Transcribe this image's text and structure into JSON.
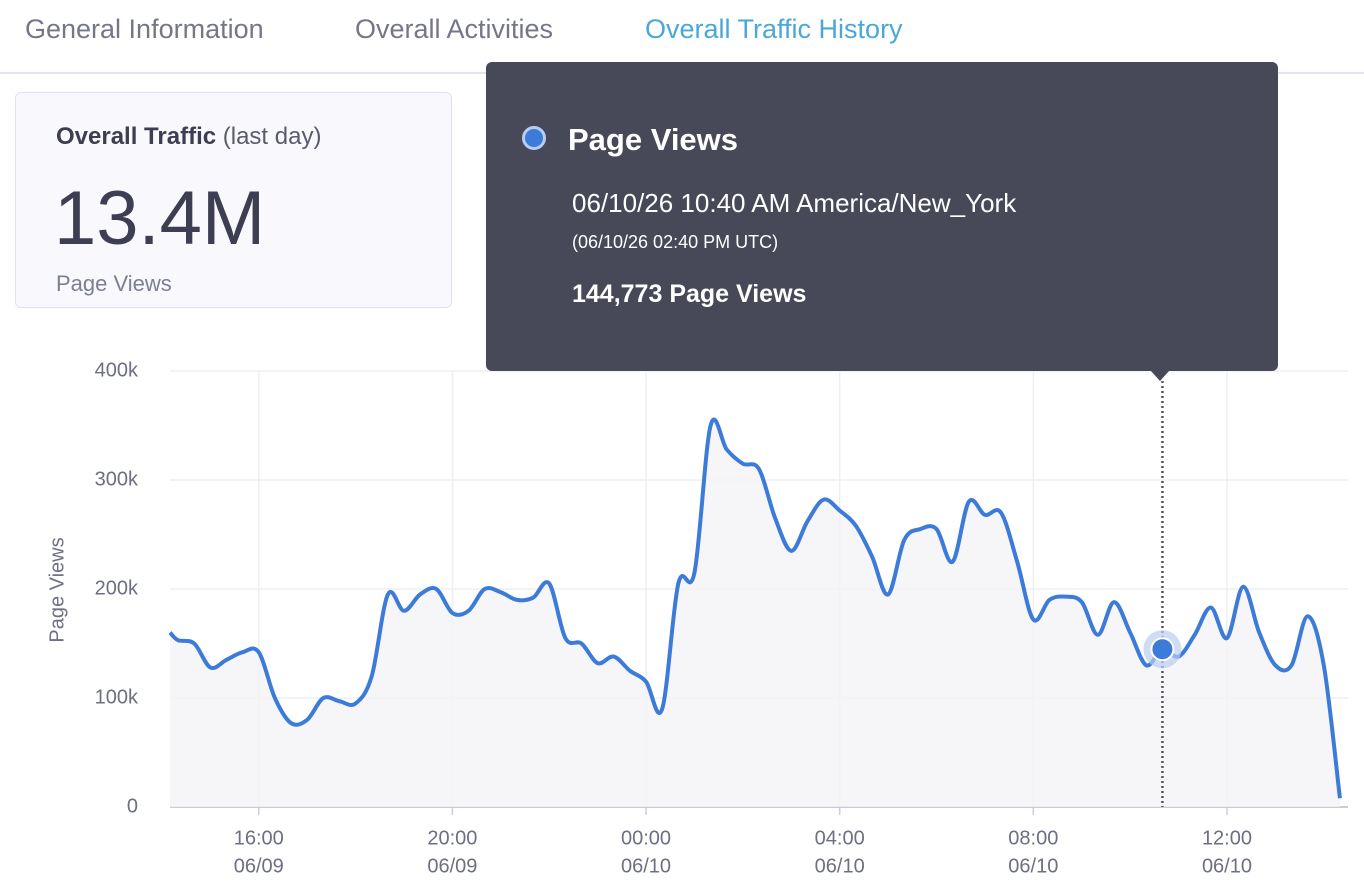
{
  "tabs": [
    "General Information",
    "Overall Activities",
    "Overall Traffic History"
  ],
  "active_tab": 2,
  "card": {
    "title": "Overall Traffic",
    "subtitle": "(last day)",
    "value": "13.4M",
    "label": "Page Views"
  },
  "tooltip": {
    "series": "Page Views",
    "time": "06/10/26 10:40 AM America/New_York",
    "utc": "(06/10/26 02:40 PM UTC)",
    "value": "144,773 Page Views"
  },
  "chart_data": {
    "type": "line",
    "ylabel": "Page Views",
    "x": [
      "06/09 14:10",
      "06/09 14:20",
      "06/09 14:40",
      "06/09 15:00",
      "06/09 15:20",
      "06/09 15:40",
      "06/09 16:00",
      "06/09 16:20",
      "06/09 16:40",
      "06/09 17:00",
      "06/09 17:20",
      "06/09 17:40",
      "06/09 18:00",
      "06/09 18:20",
      "06/09 18:40",
      "06/09 19:00",
      "06/09 19:20",
      "06/09 19:40",
      "06/09 20:00",
      "06/09 20:20",
      "06/09 20:40",
      "06/09 21:00",
      "06/09 21:20",
      "06/09 21:40",
      "06/09 22:00",
      "06/09 22:20",
      "06/09 22:40",
      "06/09 23:00",
      "06/09 23:20",
      "06/09 23:40",
      "06/10 00:00",
      "06/10 00:20",
      "06/10 00:40",
      "06/10 01:00",
      "06/10 01:20",
      "06/10 01:40",
      "06/10 02:00",
      "06/10 02:20",
      "06/10 02:40",
      "06/10 03:00",
      "06/10 03:20",
      "06/10 03:40",
      "06/10 04:00",
      "06/10 04:20",
      "06/10 04:40",
      "06/10 05:00",
      "06/10 05:20",
      "06/10 05:40",
      "06/10 06:00",
      "06/10 06:20",
      "06/10 06:40",
      "06/10 07:00",
      "06/10 07:20",
      "06/10 07:40",
      "06/10 08:00",
      "06/10 08:20",
      "06/10 08:40",
      "06/10 09:00",
      "06/10 09:20",
      "06/10 09:40",
      "06/10 10:00",
      "06/10 10:20",
      "06/10 10:40",
      "06/10 11:00",
      "06/10 11:20",
      "06/10 11:40",
      "06/10 12:00",
      "06/10 12:20",
      "06/10 12:40",
      "06/10 13:00",
      "06/10 13:20",
      "06/10 13:40",
      "06/10 14:00",
      "06/10 14:20"
    ],
    "series": [
      {
        "name": "Page Views",
        "color": "#3c7bd8",
        "values": [
          160000,
          153000,
          150000,
          128000,
          135000,
          142000,
          142000,
          100000,
          77000,
          80000,
          100000,
          97000,
          95000,
          120000,
          195000,
          180000,
          195000,
          200000,
          178000,
          180000,
          200000,
          197000,
          190000,
          192000,
          205000,
          155000,
          150000,
          132000,
          138000,
          125000,
          115000,
          90000,
          205000,
          215000,
          350000,
          328000,
          315000,
          310000,
          265000,
          235000,
          262000,
          282000,
          272000,
          258000,
          230000,
          195000,
          245000,
          255000,
          255000,
          225000,
          280000,
          268000,
          270000,
          225000,
          172000,
          190000,
          193000,
          188000,
          158000,
          188000,
          160000,
          130000,
          144773,
          138000,
          158000,
          183000,
          155000,
          202000,
          160000,
          130000,
          130000,
          175000,
          130000,
          8000
        ]
      }
    ],
    "highlight_index": 62,
    "xlim": [
      "06/09 14:10",
      "06/10 14:30"
    ],
    "xticks": [
      {
        "value": "06/09 16:00",
        "label": "16:00",
        "date": "06/09"
      },
      {
        "value": "06/09 20:00",
        "label": "20:00",
        "date": "06/09"
      },
      {
        "value": "06/10 00:00",
        "label": "00:00",
        "date": "06/10"
      },
      {
        "value": "06/10 04:00",
        "label": "04:00",
        "date": "06/10"
      },
      {
        "value": "06/10 08:00",
        "label": "08:00",
        "date": "06/10"
      },
      {
        "value": "06/10 12:00",
        "label": "12:00",
        "date": "06/10"
      }
    ],
    "ylim": [
      0,
      400000
    ],
    "yticks": [
      0,
      {
        "value": 100000,
        "label": "100k"
      },
      {
        "value": 200000,
        "label": "200k"
      },
      {
        "value": 300000,
        "label": "300k"
      },
      {
        "value": 400000,
        "label": "400k"
      }
    ],
    "grid": true
  }
}
